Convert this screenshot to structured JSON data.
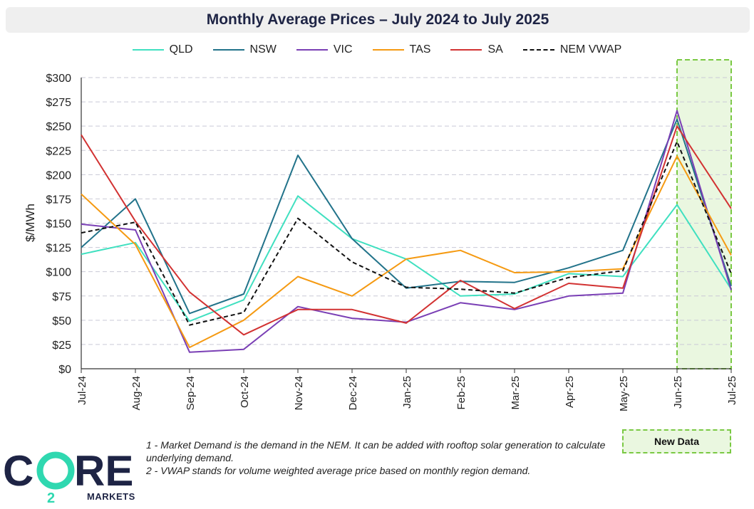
{
  "chart_data": {
    "type": "line",
    "title": "Monthly Average Prices – July 2024 to July 2025",
    "ylabel": "$/MWh",
    "xlabel": "",
    "ylim": [
      0,
      300
    ],
    "y_ticks": [
      "$0",
      "$25",
      "$50",
      "$75",
      "$100",
      "$125",
      "$150",
      "$175",
      "$200",
      "$225",
      "$250",
      "$275",
      "$300"
    ],
    "categories": [
      "Jul-24",
      "Aug-24",
      "Sep-24",
      "Oct-24",
      "Nov-24",
      "Dec-24",
      "Jan-25",
      "Feb-25",
      "Mar-25",
      "Apr-25",
      "May-25",
      "Jun-25",
      "Jul-25"
    ],
    "grid": "horizontal dashed",
    "legend_position": "top",
    "series": [
      {
        "name": "QLD",
        "color": "#40e0c0",
        "dash": "solid",
        "values": [
          118,
          130,
          49,
          71,
          178,
          134,
          113,
          75,
          77,
          98,
          95,
          169,
          82
        ]
      },
      {
        "name": "NSW",
        "color": "#22738a",
        "dash": "solid",
        "values": [
          125,
          175,
          57,
          77,
          220,
          134,
          83,
          90,
          89,
          104,
          122,
          257,
          85
        ]
      },
      {
        "name": "VIC",
        "color": "#7a3fb5",
        "dash": "solid",
        "values": [
          149,
          143,
          17,
          20,
          64,
          52,
          48,
          68,
          61,
          75,
          78,
          266,
          81
        ]
      },
      {
        "name": "TAS",
        "color": "#f59a12",
        "dash": "solid",
        "values": [
          180,
          128,
          22,
          50,
          95,
          75,
          113,
          122,
          99,
          100,
          103,
          219,
          117
        ]
      },
      {
        "name": "SA",
        "color": "#d23232",
        "dash": "solid",
        "values": [
          241,
          152,
          79,
          35,
          61,
          61,
          47,
          91,
          62,
          88,
          83,
          250,
          165
        ]
      },
      {
        "name": "NEM VWAP",
        "color": "#111111",
        "dash": "dashed",
        "values": [
          140,
          151,
          45,
          58,
          155,
          110,
          84,
          82,
          78,
          94,
          101,
          234,
          98
        ]
      }
    ],
    "highlight": {
      "from": "Jun-25",
      "to": "Jul-25",
      "label": "New Data",
      "color": "#7ac943"
    }
  },
  "notes": [
    "1 - Market Demand is the demand in the NEM. It can be added with rooftop solar generation to calculate underlying demand.",
    "2 - VWAP stands for volume weighted average price based on monthly region demand."
  ],
  "logo": {
    "main": "CO2RE",
    "sub": "MARKETS"
  },
  "colors": {
    "title_bg": "#efefef",
    "title_text": "#1e2445",
    "highlight_fill": "#eaf7e0",
    "highlight_border": "#7ac943"
  }
}
